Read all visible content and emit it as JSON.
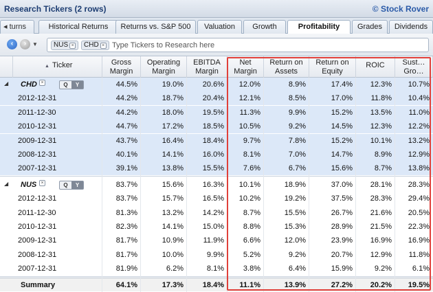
{
  "window": {
    "title": "Research Tickers (2 rows)",
    "brand": "© Stock Rover"
  },
  "tabs": {
    "scroll_label": "◂ turns",
    "items": [
      {
        "label": "Historical Returns"
      },
      {
        "label": "Returns vs. S&P 500"
      },
      {
        "label": "Valuation"
      },
      {
        "label": "Growth"
      },
      {
        "label": "Profitability"
      },
      {
        "label": "Grades"
      },
      {
        "label": "Dividends"
      }
    ],
    "active": "Profitability"
  },
  "toolbar": {
    "chips": [
      {
        "label": "NUS"
      },
      {
        "label": "CHD"
      }
    ],
    "placeholder": "Type Tickers to Research here"
  },
  "columns": [
    {
      "label": "Ticker"
    },
    {
      "label": "Gross Margin"
    },
    {
      "label": "Operating Margin"
    },
    {
      "label": "EBITDA Margin"
    },
    {
      "label": "Net Margin"
    },
    {
      "label": "Return on Assets"
    },
    {
      "label": "Return on Equity"
    },
    {
      "label": "ROIC"
    },
    {
      "label": "Sust… Gro…"
    }
  ],
  "groups": [
    {
      "ticker": "CHD",
      "summary_values": [
        "44.5%",
        "19.0%",
        "20.6%",
        "12.0%",
        "8.9%",
        "17.4%",
        "12.3%",
        "10.7%"
      ],
      "rows": [
        {
          "date": "2012-12-31",
          "values": [
            "44.2%",
            "18.7%",
            "20.4%",
            "12.1%",
            "8.5%",
            "17.0%",
            "11.8%",
            "10.4%"
          ]
        },
        {
          "date": "2011-12-30",
          "values": [
            "44.2%",
            "18.0%",
            "19.5%",
            "11.3%",
            "9.9%",
            "15.2%",
            "13.5%",
            "11.0%"
          ]
        },
        {
          "date": "2010-12-31",
          "values": [
            "44.7%",
            "17.2%",
            "18.5%",
            "10.5%",
            "9.2%",
            "14.5%",
            "12.3%",
            "12.2%"
          ]
        },
        {
          "date": "2009-12-31",
          "values": [
            "43.7%",
            "16.4%",
            "18.4%",
            "9.7%",
            "7.8%",
            "15.2%",
            "10.1%",
            "13.2%"
          ]
        },
        {
          "date": "2008-12-31",
          "values": [
            "40.1%",
            "14.1%",
            "16.0%",
            "8.1%",
            "7.0%",
            "14.7%",
            "8.9%",
            "12.9%"
          ]
        },
        {
          "date": "2007-12-31",
          "values": [
            "39.1%",
            "13.8%",
            "15.5%",
            "7.6%",
            "6.7%",
            "15.6%",
            "8.7%",
            "13.8%"
          ]
        }
      ]
    },
    {
      "ticker": "NUS",
      "summary_values": [
        "83.7%",
        "15.6%",
        "16.3%",
        "10.1%",
        "18.9%",
        "37.0%",
        "28.1%",
        "28.3%"
      ],
      "rows": [
        {
          "date": "2012-12-31",
          "values": [
            "83.7%",
            "15.7%",
            "16.5%",
            "10.2%",
            "19.2%",
            "37.5%",
            "28.3%",
            "29.4%"
          ]
        },
        {
          "date": "2011-12-30",
          "values": [
            "81.3%",
            "13.2%",
            "14.2%",
            "8.7%",
            "15.5%",
            "26.7%",
            "21.6%",
            "20.5%"
          ]
        },
        {
          "date": "2010-12-31",
          "values": [
            "82.3%",
            "14.1%",
            "15.0%",
            "8.8%",
            "15.3%",
            "28.9%",
            "21.5%",
            "22.3%"
          ]
        },
        {
          "date": "2009-12-31",
          "values": [
            "81.7%",
            "10.9%",
            "11.9%",
            "6.6%",
            "12.0%",
            "23.9%",
            "16.9%",
            "16.9%"
          ]
        },
        {
          "date": "2008-12-31",
          "values": [
            "81.7%",
            "10.0%",
            "9.9%",
            "5.2%",
            "9.2%",
            "20.7%",
            "12.9%",
            "11.8%"
          ]
        },
        {
          "date": "2007-12-31",
          "values": [
            "81.9%",
            "6.2%",
            "8.1%",
            "3.8%",
            "6.4%",
            "15.9%",
            "9.2%",
            "6.1%"
          ]
        }
      ]
    }
  ],
  "summary": {
    "label": "Summary",
    "values": [
      "64.1%",
      "17.3%",
      "18.4%",
      "11.1%",
      "13.9%",
      "27.2%",
      "20.2%",
      "19.5%"
    ]
  },
  "controls": {
    "q_label": "Q",
    "y_label": "Y",
    "remove_glyph": "×",
    "expand_glyph": "◢"
  },
  "colors": {
    "selected_group_bg": "#dce8f8",
    "highlight_border": "#e0403a",
    "brand": "#2a5aa8"
  }
}
